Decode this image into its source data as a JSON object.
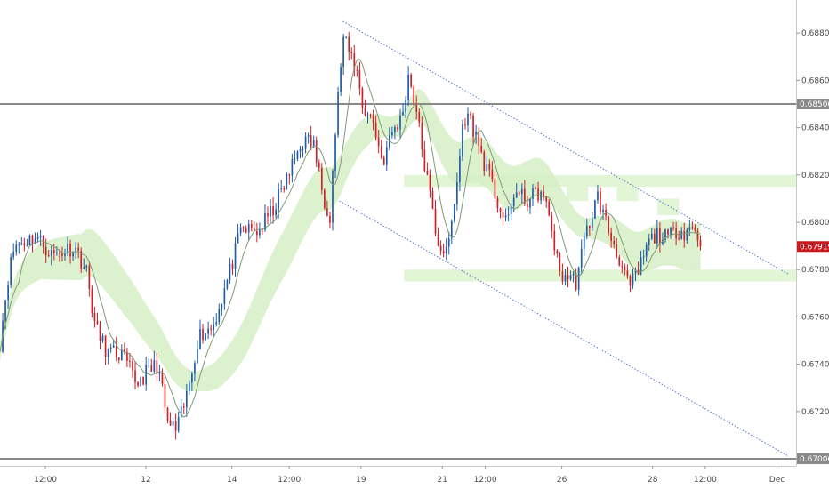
{
  "chart_data": {
    "type": "candlestick",
    "title": "",
    "xlabel": "",
    "ylabel": "",
    "y_ticks": [
      0.67,
      0.672,
      0.674,
      0.676,
      0.678,
      0.68,
      0.682,
      0.684,
      0.685,
      0.686,
      0.688
    ],
    "y_tick_labels": [
      "0.67000",
      "0.67200",
      "0.67400",
      "0.67600",
      "0.67800",
      "0.68000",
      "0.68200",
      "0.68400",
      "0.68500",
      "0.68600",
      "0.68800"
    ],
    "ylim": [
      0.6697,
      0.6894
    ],
    "x_tick_labels": [
      "12:00",
      "12",
      "14",
      "12:00",
      "19",
      "21",
      "12:00",
      "26",
      "28",
      "12:00",
      "Dec"
    ],
    "x_tick_positions": [
      0.5,
      2.6,
      4.4,
      5.6,
      7.1,
      8.8,
      9.7,
      11.3,
      13.2,
      14.3,
      15.8
    ],
    "xlim": [
      -0.45,
      16.2
    ],
    "last_price_label": "0.67919",
    "horizontal_levels": [
      {
        "label": "0.68500",
        "value": 0.685
      },
      {
        "label": "0.67000",
        "value": 0.67
      }
    ],
    "support_zones": [
      {
        "x": [
          8.0,
          16.2
        ],
        "y": [
          0.6815,
          0.682
        ]
      },
      {
        "x": [
          8.0,
          16.2
        ],
        "y": [
          0.6775,
          0.678
        ]
      }
    ],
    "resistance_boxes": [
      {
        "x": [
          11.4,
          11.85
        ],
        "y": [
          0.6809,
          0.6816
        ]
      },
      {
        "x": [
          12.45,
          12.9
        ],
        "y": [
          0.6809,
          0.6816
        ]
      },
      {
        "x": [
          13.3,
          13.75
        ],
        "y": [
          0.6803,
          0.681
        ]
      }
    ],
    "channel_lines": [
      {
        "from": [
          6.72,
          0.6885
        ],
        "to": [
          16.05,
          0.6778
        ]
      },
      {
        "from": [
          6.65,
          0.6809
        ],
        "to": [
          16.05,
          0.6701
        ]
      }
    ],
    "path_anchors": [
      [
        -0.45,
        0.6749
      ],
      [
        -0.3,
        0.6775
      ],
      [
        -0.15,
        0.679
      ],
      [
        0.3,
        0.6794
      ],
      [
        0.65,
        0.6786
      ],
      [
        1.1,
        0.679
      ],
      [
        1.35,
        0.678
      ],
      [
        1.55,
        0.6755
      ],
      [
        1.8,
        0.6745
      ],
      [
        2.1,
        0.6744
      ],
      [
        2.4,
        0.6732
      ],
      [
        2.65,
        0.6737
      ],
      [
        2.85,
        0.674
      ],
      [
        3.05,
        0.6715
      ],
      [
        3.25,
        0.6712
      ],
      [
        3.45,
        0.6726
      ],
      [
        3.7,
        0.6752
      ],
      [
        4.0,
        0.6756
      ],
      [
        4.3,
        0.6775
      ],
      [
        4.6,
        0.6797
      ],
      [
        4.95,
        0.6796
      ],
      [
        5.25,
        0.6805
      ],
      [
        5.55,
        0.6818
      ],
      [
        5.85,
        0.6834
      ],
      [
        6.1,
        0.6834
      ],
      [
        6.3,
        0.6812
      ],
      [
        6.45,
        0.6803
      ],
      [
        6.55,
        0.6835
      ],
      [
        6.72,
        0.6878
      ],
      [
        6.85,
        0.6872
      ],
      [
        7.0,
        0.6865
      ],
      [
        7.15,
        0.6848
      ],
      [
        7.35,
        0.6843
      ],
      [
        7.55,
        0.6825
      ],
      [
        7.75,
        0.6838
      ],
      [
        7.95,
        0.6844
      ],
      [
        8.1,
        0.6863
      ],
      [
        8.25,
        0.6848
      ],
      [
        8.4,
        0.6828
      ],
      [
        8.55,
        0.681
      ],
      [
        8.7,
        0.6792
      ],
      [
        8.9,
        0.6786
      ],
      [
        9.1,
        0.6815
      ],
      [
        9.25,
        0.6845
      ],
      [
        9.4,
        0.6843
      ],
      [
        9.6,
        0.683
      ],
      [
        9.8,
        0.6818
      ],
      [
        10.0,
        0.6806
      ],
      [
        10.15,
        0.6798
      ],
      [
        10.3,
        0.6813
      ],
      [
        10.55,
        0.6809
      ],
      [
        10.85,
        0.6813
      ],
      [
        11.05,
        0.6802
      ],
      [
        11.25,
        0.6778
      ],
      [
        11.45,
        0.6777
      ],
      [
        11.6,
        0.6775
      ],
      [
        11.8,
        0.6795
      ],
      [
        12.05,
        0.6811
      ],
      [
        12.3,
        0.6795
      ],
      [
        12.5,
        0.6785
      ],
      [
        12.7,
        0.6772
      ],
      [
        12.9,
        0.6779
      ],
      [
        13.1,
        0.6791
      ],
      [
        13.3,
        0.6795
      ],
      [
        13.5,
        0.6793
      ],
      [
        13.7,
        0.6797
      ],
      [
        13.85,
        0.6796
      ],
      [
        14.05,
        0.6798
      ],
      [
        14.2,
        0.6792
      ]
    ],
    "candle_count": 260,
    "colors": {
      "up": "#1f5ba8",
      "down": "#d11f26",
      "ma": "#7f9a77",
      "cloud": "#d6efc5",
      "zone": "#e2f6d6",
      "channel": "#4f79c4",
      "level": "#8a8a8a",
      "price_tag": "#c9171e"
    }
  }
}
